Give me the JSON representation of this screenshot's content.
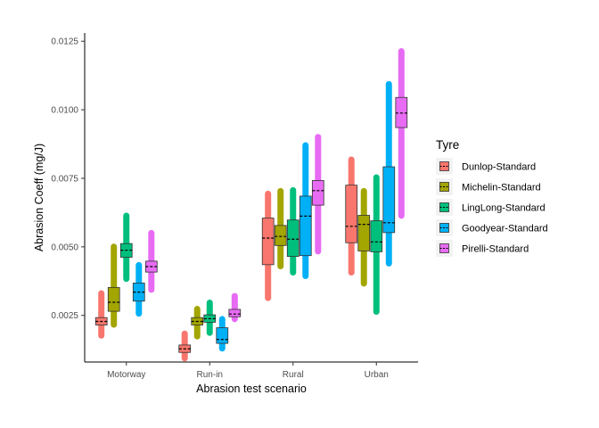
{
  "chart_data": {
    "type": "boxplot",
    "xlabel": "Abrasion test scenario",
    "ylabel": "Abrasion Coeff (mg/J)",
    "categories": [
      "Motorway",
      "Run-in",
      "Rural",
      "Urban"
    ],
    "y_ticks": [
      "0.0025",
      "0.0050",
      "0.0075",
      "0.0100",
      "0.0125"
    ],
    "ylim": [
      0.0008,
      0.0128
    ],
    "grid": false,
    "legend": {
      "title": "Tyre",
      "position": "right"
    },
    "series": [
      {
        "name": "Dunlop-Standard",
        "color": "#F8766D",
        "boxes": [
          {
            "min": 0.00175,
            "q1": 0.00215,
            "median": 0.00228,
            "q3": 0.00242,
            "max": 0.00332
          },
          {
            "min": 0.00092,
            "q1": 0.00115,
            "median": 0.00128,
            "q3": 0.00142,
            "max": 0.00185
          },
          {
            "min": 0.00312,
            "q1": 0.00435,
            "median": 0.00532,
            "q3": 0.00605,
            "max": 0.00695
          },
          {
            "min": 0.00405,
            "q1": 0.00515,
            "median": 0.00575,
            "q3": 0.00725,
            "max": 0.0082
          }
        ]
      },
      {
        "name": "Michelin-Standard",
        "color": "#A3A500",
        "boxes": [
          {
            "min": 0.00215,
            "q1": 0.00265,
            "median": 0.00298,
            "q3": 0.00352,
            "max": 0.00502
          },
          {
            "min": 0.00172,
            "q1": 0.00215,
            "median": 0.00228,
            "q3": 0.00242,
            "max": 0.00275
          },
          {
            "min": 0.00428,
            "q1": 0.00505,
            "median": 0.00538,
            "q3": 0.00578,
            "max": 0.00705
          },
          {
            "min": 0.00365,
            "q1": 0.00485,
            "median": 0.00582,
            "q3": 0.00615,
            "max": 0.00705
          }
        ]
      },
      {
        "name": "LingLong-Standard",
        "color": "#00BF7D",
        "boxes": [
          {
            "min": 0.00382,
            "q1": 0.00462,
            "median": 0.00488,
            "q3": 0.00512,
            "max": 0.00615
          },
          {
            "min": 0.00185,
            "q1": 0.00225,
            "median": 0.00238,
            "q3": 0.00252,
            "max": 0.00298
          },
          {
            "min": 0.00405,
            "q1": 0.00465,
            "median": 0.00528,
            "q3": 0.00598,
            "max": 0.00708
          },
          {
            "min": 0.00262,
            "q1": 0.00482,
            "median": 0.00518,
            "q3": 0.00595,
            "max": 0.00755
          }
        ]
      },
      {
        "name": "Goodyear-Standard",
        "color": "#00B0F6",
        "boxes": [
          {
            "min": 0.00255,
            "q1": 0.00302,
            "median": 0.00335,
            "q3": 0.00368,
            "max": 0.00435
          },
          {
            "min": 0.00128,
            "q1": 0.00148,
            "median": 0.00162,
            "q3": 0.00205,
            "max": 0.00238
          },
          {
            "min": 0.00392,
            "q1": 0.00468,
            "median": 0.00612,
            "q3": 0.00685,
            "max": 0.00872
          },
          {
            "min": 0.00438,
            "q1": 0.00552,
            "median": 0.00588,
            "q3": 0.00792,
            "max": 0.01095
          }
        ]
      },
      {
        "name": "Pirelli-Standard",
        "color": "#E76BF3",
        "boxes": [
          {
            "min": 0.00342,
            "q1": 0.00408,
            "median": 0.00428,
            "q3": 0.00448,
            "max": 0.00552
          },
          {
            "min": 0.00235,
            "q1": 0.00245,
            "median": 0.00255,
            "q3": 0.00272,
            "max": 0.00322
          },
          {
            "min": 0.00482,
            "q1": 0.00652,
            "median": 0.00705,
            "q3": 0.00742,
            "max": 0.00902
          },
          {
            "min": 0.00612,
            "q1": 0.00935,
            "median": 0.00988,
            "q3": 0.01045,
            "max": 0.01215
          }
        ]
      }
    ]
  }
}
